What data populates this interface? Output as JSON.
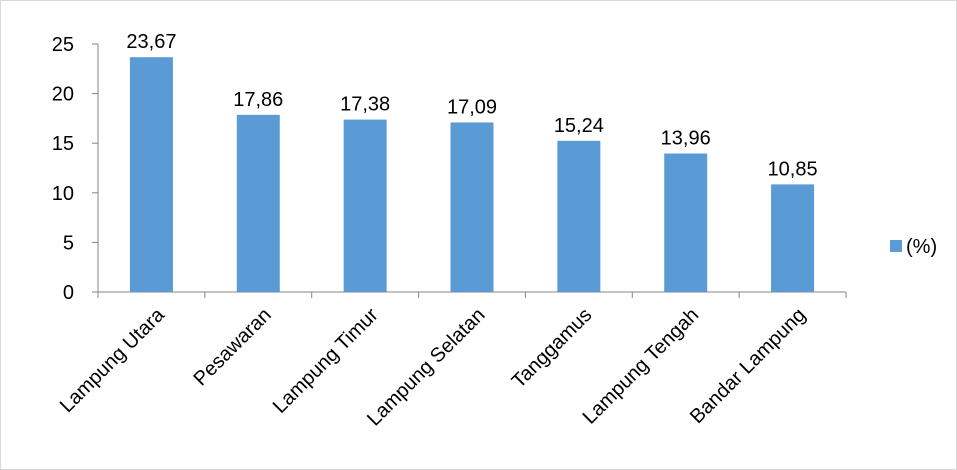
{
  "chart_data": {
    "type": "bar",
    "title": "",
    "xlabel": "",
    "ylabel": "",
    "categories": [
      "Lampung Utara",
      "Pesawaran",
      "Lampung Timur",
      "Lampung Selatan",
      "Tanggamus",
      "Lampung Tengah",
      "Bandar Lampung"
    ],
    "series": [
      {
        "name": "(%)",
        "values": [
          23.67,
          17.86,
          17.38,
          17.09,
          15.24,
          13.96,
          10.85
        ],
        "value_labels": [
          "23,67",
          "17,86",
          "17,38",
          "17,09",
          "15,24",
          "13,96",
          "10,85"
        ],
        "color": "#5b9bd5"
      }
    ],
    "ylim": [
      0,
      25
    ],
    "yticks": [
      0,
      5,
      10,
      15,
      20,
      25
    ],
    "grid": false,
    "legend_position": "right"
  }
}
